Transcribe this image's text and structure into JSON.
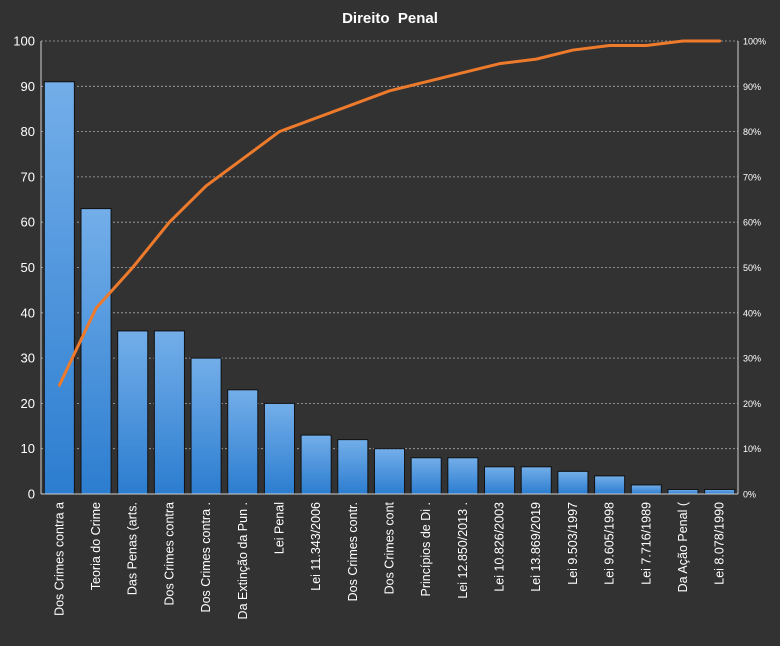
{
  "chart_data": {
    "type": "bar",
    "title": "Direito  Penal",
    "xlabel": "",
    "ylabel": "",
    "categories": [
      "Dos Crimes contra a",
      "Teoria do Crime",
      "Das Penas (arts.",
      "Dos Crimes contra",
      "Dos Crimes contra .",
      "Da Extinção da Pun .",
      "Lei Penal",
      "Lei 11.343/2006",
      "Dos Crimes contr.",
      "Dos Crimes cont",
      "Princípios de Di .",
      "Lei 12.850/2013 .",
      "Lei 10.826/2003",
      "Lei 13.869/2019",
      "Lei 9.503/1997",
      "Lei 9.605/1998",
      "Lei 7.716/1989",
      "Da Ação Penal (",
      "Lei 8.078/1990"
    ],
    "values": [
      91,
      63,
      36,
      36,
      30,
      23,
      20,
      13,
      12,
      10,
      8,
      8,
      6,
      6,
      5,
      4,
      2,
      1,
      1
    ],
    "cumulative_percent": [
      24,
      41,
      50,
      60,
      68,
      74,
      80,
      83,
      86,
      89,
      91,
      93,
      95,
      96,
      98,
      99,
      99,
      100,
      100
    ],
    "ylim": [
      0,
      100
    ],
    "yticks": [
      "0",
      "10",
      "20",
      "30",
      "40",
      "50",
      "60",
      "70",
      "80",
      "90",
      "100"
    ],
    "y2ticks": [
      "0%",
      "10%",
      "20%",
      "30%",
      "40%",
      "50%",
      "60%",
      "70%",
      "80%",
      "90%",
      "100%"
    ],
    "grid": true,
    "legend": "none",
    "colors": {
      "background": "#333232",
      "bar_top": "#73aee9",
      "bar_bottom": "#2c7dd0",
      "bar_border": "#111111",
      "line": "#ee7a2c",
      "grid": "#a9a9a9",
      "text": "#ffffff"
    }
  }
}
